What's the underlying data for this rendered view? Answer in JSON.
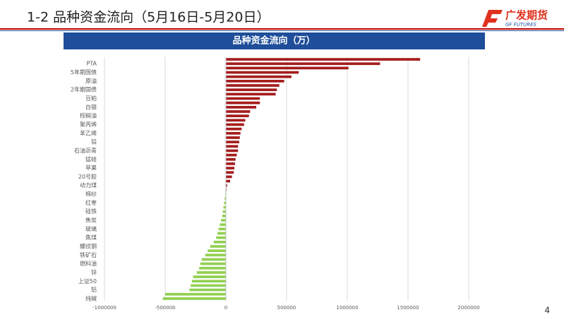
{
  "slide": {
    "title": "1-2  品种资金流向（5月16日-5月20日）",
    "logo_cn": "广发期货",
    "logo_en": "GF FUTURES",
    "page_number": "4"
  },
  "chart_data": {
    "type": "barh",
    "title": "品种资金流向（万）",
    "categories": [
      null,
      "PTA",
      null,
      "5年期国债",
      null,
      "原油",
      null,
      "2年期国债",
      null,
      "豆粕",
      null,
      "白银",
      null,
      "棕榈油",
      null,
      "聚丙烯",
      null,
      "苯乙烯",
      null,
      "铅",
      null,
      "石油沥青",
      null,
      "锰硅",
      null,
      "苹果",
      null,
      "20号胶",
      null,
      "动力煤",
      null,
      "棉纱",
      null,
      "红枣",
      null,
      "硅铁",
      null,
      "焦炭",
      null,
      "玻璃",
      null,
      "焦煤",
      null,
      "螺纹钢",
      null,
      "铁矿石",
      null,
      "燃料油",
      null,
      "锌",
      null,
      "上证50",
      null,
      "铝",
      null,
      "纯碱"
    ],
    "values": [
      1600000,
      1270000,
      1010000,
      600000,
      540000,
      480000,
      440000,
      420000,
      410000,
      280000,
      280000,
      250000,
      200000,
      190000,
      160000,
      150000,
      130000,
      120000,
      115000,
      110000,
      100000,
      100000,
      90000,
      80000,
      75000,
      70000,
      65000,
      50000,
      35000,
      10000,
      5000,
      -5000,
      -10000,
      -15000,
      -20000,
      -25000,
      -30000,
      -40000,
      -50000,
      -60000,
      -70000,
      -80000,
      -100000,
      -130000,
      -150000,
      -170000,
      -200000,
      -210000,
      -220000,
      -240000,
      -270000,
      -280000,
      -290000,
      -300000,
      -500000,
      -520000
    ],
    "positive_color": "#a51c1c",
    "negative_color": "#92d050",
    "xlim": [
      -1000000,
      2000000
    ],
    "xticks": [
      -1000000,
      -500000,
      0,
      500000,
      1000000,
      1500000,
      2000000
    ],
    "grid": true
  }
}
